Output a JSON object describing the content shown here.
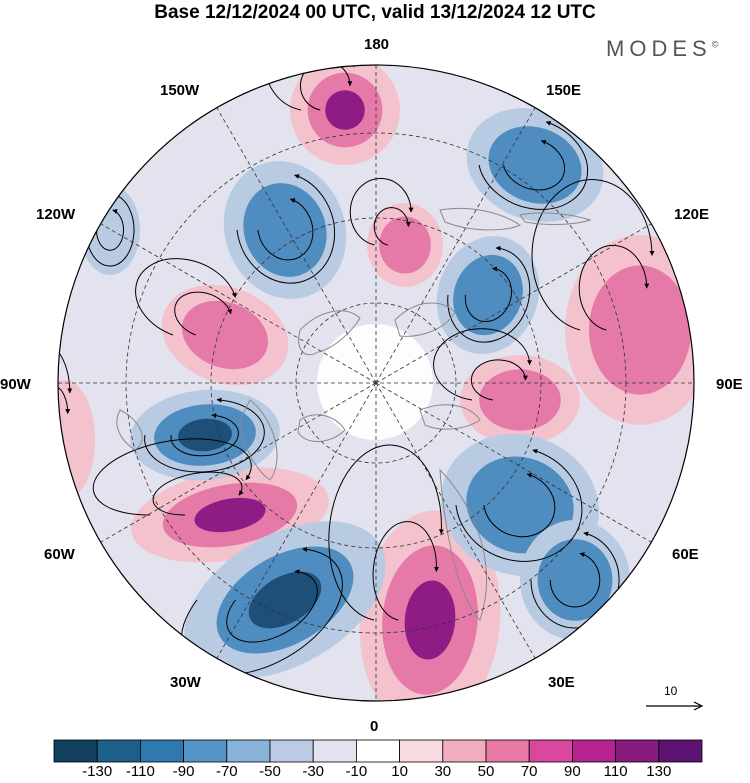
{
  "title": "Base 12/12/2024 00 UTC, valid 13/12/2024 12 UTC",
  "brand": "MODES",
  "brand_mark": "©",
  "longitudes": {
    "lon_180": "180",
    "lon_150e": "150E",
    "lon_120e": "120E",
    "lon_90e": "90E",
    "lon_60e": "60E",
    "lon_30e": "30E",
    "lon_0": "0",
    "lon_30w": "30W",
    "lon_60w": "60W",
    "lon_90w": "90W",
    "lon_120w": "120W",
    "lon_150w": "150W"
  },
  "reference_vector": {
    "label": "10"
  },
  "colorbar": {
    "labels": [
      "-130",
      "-110",
      "-90",
      "-70",
      "-50",
      "-30",
      "-10",
      "10",
      "30",
      "50",
      "70",
      "90",
      "110",
      "130"
    ],
    "colors": [
      "#13405f",
      "#1c5f8a",
      "#2f79ae",
      "#5295c6",
      "#89b3d8",
      "#bccbe3",
      "#e3e3ef",
      "#ffffff",
      "#f8dbe1",
      "#f2aec0",
      "#e97aa6",
      "#d9479f",
      "#b4238f",
      "#861a7f",
      "#5c1372"
    ]
  },
  "colors": {
    "neg_strong": "#1d4f78",
    "neg_mid": "#4f8cc0",
    "neg_weak": "#b9cbe3",
    "pos_weak": "#f4c2cd",
    "pos_mid": "#e57aa8",
    "pos_strong": "#8e1c85",
    "coast": "#8a8a8a",
    "grid": "#333333"
  }
}
